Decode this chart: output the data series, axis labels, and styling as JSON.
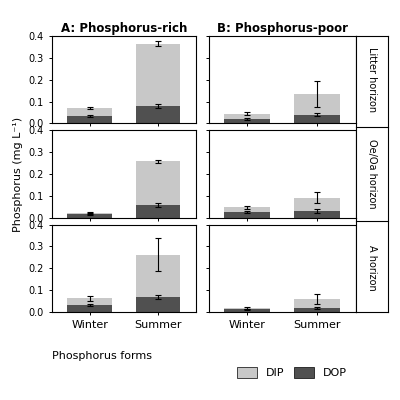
{
  "panel_A_title": "A: Phosphorus-rich",
  "panel_B_title": "B: Phosphorus-poor",
  "horizons": [
    "Litter horizon",
    "Oe/Oa horizon",
    "A horizon"
  ],
  "seasons": [
    "Winter",
    "Summer"
  ],
  "ylabel": "Phosphorus (mg L⁻¹)",
  "legend_title": "Phosphorus forms",
  "color_DIP": "#c8c8c8",
  "color_DOP": "#505050",
  "ylim": [
    0,
    0.4
  ],
  "yticks": [
    0.0,
    0.1,
    0.2,
    0.3,
    0.4
  ],
  "panel_A": {
    "Litter horizon": {
      "Winter": {
        "DIP": 0.04,
        "DOP": 0.032,
        "DIP_err": 0.005,
        "DOP_err": 0.005
      },
      "Summer": {
        "DIP": 0.285,
        "DOP": 0.08,
        "DIP_err": 0.01,
        "DOP_err": 0.008
      }
    },
    "Oe/Oa horizon": {
      "Winter": {
        "DIP": 0.008,
        "DOP": 0.015,
        "DIP_err": 0.003,
        "DOP_err": 0.003
      },
      "Summer": {
        "DIP": 0.2,
        "DOP": 0.058,
        "DIP_err": 0.008,
        "DOP_err": 0.007
      }
    },
    "A horizon": {
      "Winter": {
        "DIP": 0.03,
        "DOP": 0.032,
        "DIP_err": 0.012,
        "DOP_err": 0.005
      },
      "Summer": {
        "DIP": 0.195,
        "DOP": 0.068,
        "DIP_err": 0.075,
        "DOP_err": 0.01
      }
    }
  },
  "panel_B": {
    "Litter horizon": {
      "Winter": {
        "DIP": 0.025,
        "DOP": 0.02,
        "DIP_err": 0.007,
        "DOP_err": 0.005
      },
      "Summer": {
        "DIP": 0.095,
        "DOP": 0.04,
        "DIP_err": 0.06,
        "DOP_err": 0.008
      }
    },
    "Oe/Oa horizon": {
      "Winter": {
        "DIP": 0.022,
        "DOP": 0.025,
        "DIP_err": 0.006,
        "DOP_err": 0.004
      },
      "Summer": {
        "DIP": 0.062,
        "DOP": 0.03,
        "DIP_err": 0.025,
        "DOP_err": 0.008
      }
    },
    "A horizon": {
      "Winter": {
        "DIP": 0.008,
        "DOP": 0.012,
        "DIP_err": 0.004,
        "DOP_err": 0.003
      },
      "Summer": {
        "DIP": 0.042,
        "DOP": 0.018,
        "DIP_err": 0.022,
        "DOP_err": 0.006
      }
    }
  }
}
